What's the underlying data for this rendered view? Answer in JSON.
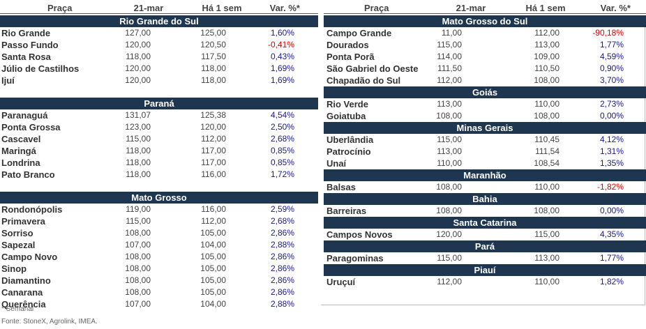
{
  "headers": {
    "praca": "Praça",
    "date": "21-mar",
    "week": "Há 1 sem",
    "var": "Var. %*"
  },
  "left": [
    {
      "title": "Rio Grande do Sul",
      "rows": [
        {
          "name": "Rio Grande",
          "v1": "127,00",
          "v2": "125,00",
          "var": "1,60%"
        },
        {
          "name": "Passo Fundo",
          "v1": "120,00",
          "v2": "120,50",
          "var": "-0,41%"
        },
        {
          "name": "Santa Rosa",
          "v1": "118,00",
          "v2": "117,50",
          "var": "0,43%"
        },
        {
          "name": "Júlio de Castilhos",
          "v1": "120,00",
          "v2": "118,00",
          "var": "1,69%"
        },
        {
          "name": "Ijuí",
          "v1": "120,00",
          "v2": "118,00",
          "var": "1,69%"
        }
      ]
    },
    {
      "title": "Paraná",
      "rows": [
        {
          "name": "Paranaguá",
          "v1": "131,07",
          "v2": "125,38",
          "var": "4,54%"
        },
        {
          "name": "Ponta Grossa",
          "v1": "123,00",
          "v2": "120,00",
          "var": "2,50%"
        },
        {
          "name": "Cascavel",
          "v1": "115,00",
          "v2": "112,00",
          "var": "2,68%"
        },
        {
          "name": "Maringá",
          "v1": "118,00",
          "v2": "117,00",
          "var": "0,85%"
        },
        {
          "name": "Londrina",
          "v1": "118,00",
          "v2": "117,00",
          "var": "0,85%"
        },
        {
          "name": "Pato Branco",
          "v1": "118,00",
          "v2": "116,00",
          "var": "1,72%"
        }
      ]
    },
    {
      "title": "Mato Grosso",
      "rows": [
        {
          "name": "Rondonópolis",
          "v1": "119,00",
          "v2": "116,00",
          "var": "2,59%"
        },
        {
          "name": "Primavera",
          "v1": "115,00",
          "v2": "112,00",
          "var": "2,68%"
        },
        {
          "name": "Sorriso",
          "v1": "108,00",
          "v2": "105,00",
          "var": "2,86%"
        },
        {
          "name": "Sapezal",
          "v1": "107,00",
          "v2": "104,00",
          "var": "2,88%"
        },
        {
          "name": "Campo Novo",
          "v1": "108,00",
          "v2": "105,00",
          "var": "2,86%"
        },
        {
          "name": "Sinop",
          "v1": "108,00",
          "v2": "105,00",
          "var": "2,86%"
        },
        {
          "name": "Diamantino",
          "v1": "108,00",
          "v2": "105,00",
          "var": "2,86%"
        },
        {
          "name": "Canarana",
          "v1": "108,00",
          "v2": "105,00",
          "var": "2,86%"
        },
        {
          "name": "Querência",
          "v1": "107,00",
          "v2": "104,00",
          "var": "2,88%"
        }
      ]
    }
  ],
  "right": [
    {
      "title": "Mato Grosso do Sul",
      "rows": [
        {
          "name": "Campo Grande",
          "v1": "11,00",
          "v2": "112,00",
          "var": "-90,18%"
        },
        {
          "name": "Dourados",
          "v1": "115,00",
          "v2": "113,00",
          "var": "1,77%"
        },
        {
          "name": "Ponta Porã",
          "v1": "114,00",
          "v2": "109,00",
          "var": "4,59%"
        },
        {
          "name": "São Gabriel do Oeste",
          "v1": "111,50",
          "v2": "110,50",
          "var": "0,90%"
        },
        {
          "name": "Chapadão do Sul",
          "v1": "112,00",
          "v2": "108,00",
          "var": "3,70%"
        }
      ]
    },
    {
      "title": "Goiás",
      "rows": [
        {
          "name": "Rio Verde",
          "v1": "113,00",
          "v2": "110,00",
          "var": "2,73%"
        },
        {
          "name": "Goiatuba",
          "v1": "108,00",
          "v2": "108,00",
          "var": "0,00%"
        }
      ]
    },
    {
      "title": "Minas Gerais",
      "rows": [
        {
          "name": "Uberlândia",
          "v1": "115,00",
          "v2": "110,45",
          "var": "4,12%"
        },
        {
          "name": "Patrocínio",
          "v1": "113,00",
          "v2": "111,54",
          "var": "1,31%"
        },
        {
          "name": "Unaí",
          "v1": "110,00",
          "v2": "108,54",
          "var": "1,35%"
        }
      ]
    },
    {
      "title": "Maranhão",
      "rows": [
        {
          "name": "Balsas",
          "v1": "108,00",
          "v2": "110,00",
          "var": "-1,82%"
        }
      ]
    },
    {
      "title": "Bahia",
      "rows": [
        {
          "name": "Barreiras",
          "v1": "108,00",
          "v2": "108,00",
          "var": "0,00%"
        }
      ]
    },
    {
      "title": "Santa Catarina",
      "rows": [
        {
          "name": "Campos Novos",
          "v1": "120,00",
          "v2": "115,00",
          "var": "4,35%"
        }
      ]
    },
    {
      "title": "Pará",
      "rows": [
        {
          "name": "Paragominas",
          "v1": "115,00",
          "v2": "113,00",
          "var": "1,77%"
        }
      ]
    },
    {
      "title": "Piauí",
      "rows": [
        {
          "name": "Uruçuí",
          "v1": "112,00",
          "v2": "110,00",
          "var": "1,82%"
        }
      ]
    }
  ],
  "footer": {
    "note": "* Semanal",
    "source": "Fonte: StoneX, Agrolink, IMEA."
  },
  "colors": {
    "section_bg": "#1f3650",
    "positive": "#1a1a8c",
    "negative": "#e00000"
  }
}
